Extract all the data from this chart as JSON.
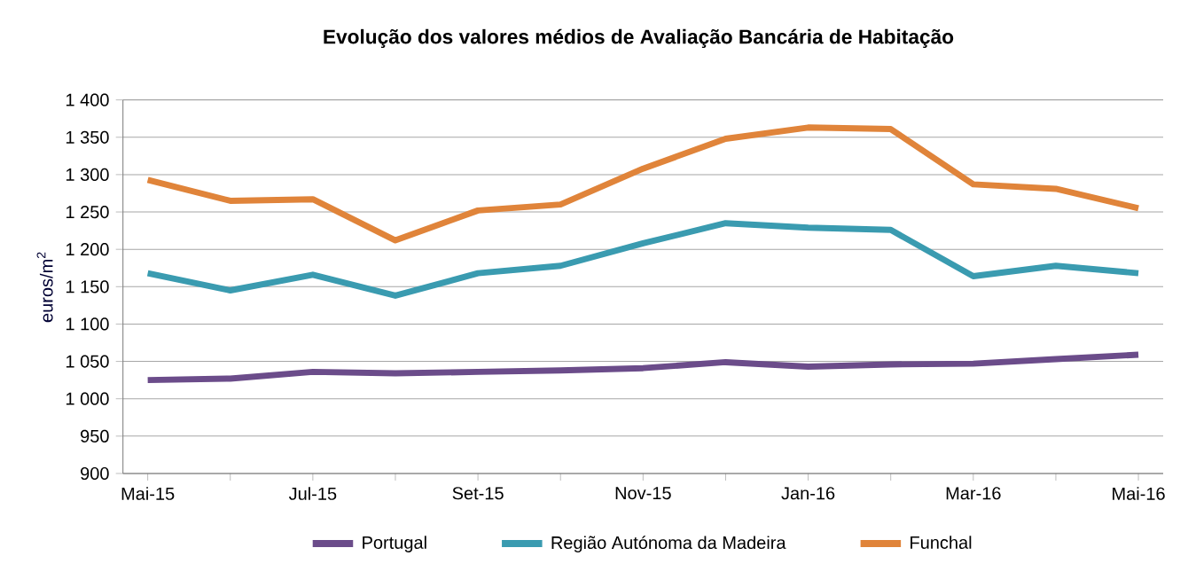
{
  "chart_data": {
    "type": "line",
    "title": "Evolução dos valores médios de Avaliação Bancária de Habitação",
    "ylabel": "euros/m$^{2}$",
    "categories": [
      "Mai-15",
      null,
      "Jul-15",
      null,
      "Set-15",
      null,
      "Nov-15",
      null,
      "Jan-16",
      null,
      "Mar-16",
      null,
      "Mai-16"
    ],
    "series": [
      {
        "name": "Portugal",
        "color": "#6b4c8a",
        "values": [
          1025,
          1027,
          1036,
          1034,
          1036,
          1038,
          1041,
          1049,
          1043,
          1046,
          1047,
          1053,
          1059
        ]
      },
      {
        "name": "Região Autónoma da Madeira",
        "color": "#3a9bb0",
        "values": [
          1168,
          1145,
          1166,
          1138,
          1168,
          1178,
          1208,
          1235,
          1229,
          1226,
          1164,
          1178,
          1168
        ]
      },
      {
        "name": "Funchal",
        "color": "#e0843a",
        "values": [
          1293,
          1265,
          1267,
          1212,
          1252,
          1260,
          1308,
          1348,
          1363,
          1361,
          1287,
          1281,
          1255
        ]
      }
    ],
    "ylim": [
      900,
      1400
    ],
    "yticks": [
      {
        "value": 900,
        "label": "900"
      },
      {
        "value": 950,
        "label": "950"
      },
      {
        "value": 1000,
        "label": "1 000"
      },
      {
        "value": 1050,
        "label": "1 050"
      },
      {
        "value": 1100,
        "label": "1 100"
      },
      {
        "value": 1150,
        "label": "1 150"
      },
      {
        "value": 1200,
        "label": "1 200"
      },
      {
        "value": 1250,
        "label": "1 250"
      },
      {
        "value": 1300,
        "label": "1 300"
      },
      {
        "value": 1350,
        "label": "1 350"
      },
      {
        "value": 1400,
        "label": "1 400"
      }
    ],
    "grid": "y",
    "legend": "bottom",
    "marker": "none",
    "line_style": "solid"
  }
}
